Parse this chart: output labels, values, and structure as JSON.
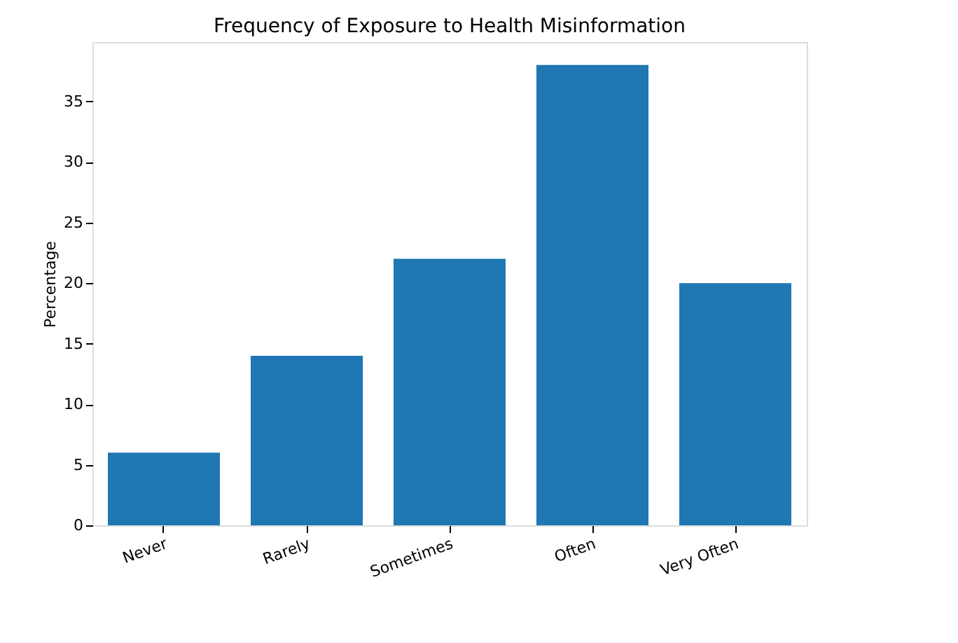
{
  "chart_data": {
    "type": "bar",
    "title": "Frequency of Exposure to Health Misinformation",
    "ylabel": "Percentage",
    "categories": [
      "Never",
      "Rarely",
      "Sometimes",
      "Often",
      "Very Often"
    ],
    "values": [
      6,
      14,
      22,
      38,
      20
    ],
    "color": "#1f77b4",
    "ylim": [
      0,
      39.9
    ],
    "yticks": [
      0,
      5,
      10,
      15,
      20,
      25,
      30,
      35
    ],
    "grid": false
  }
}
